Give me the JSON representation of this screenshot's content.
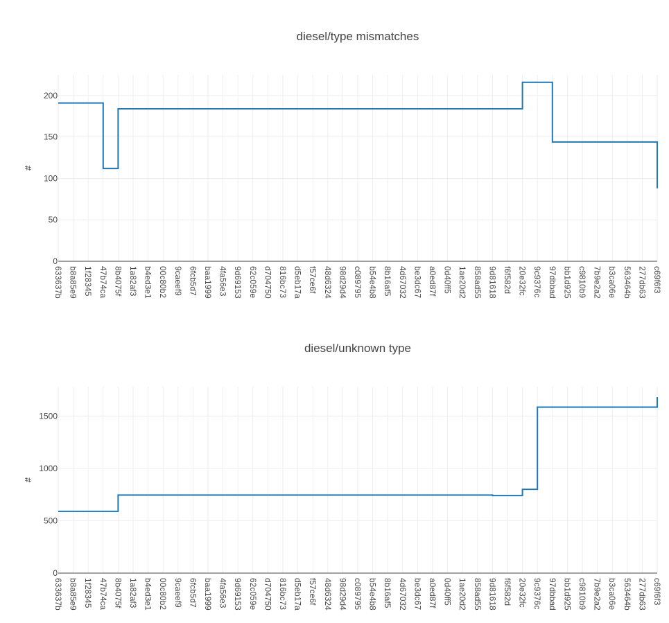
{
  "chart_data": [
    {
      "type": "line",
      "step": true,
      "title": "diesel/type mismatches",
      "ylabel": "#",
      "xlabel": "",
      "ylim": [
        0,
        225
      ],
      "yticks": [
        0,
        50,
        100,
        150,
        200
      ],
      "grid": true,
      "color": "#1f77b4",
      "categories": [
        "633637b",
        "b8a85e9",
        "1f28345",
        "47b74ca",
        "8b4075f",
        "1a82af3",
        "b4ed3e1",
        "00c80b2",
        "9caeef9",
        "6fcb5d7",
        "baa1999",
        "4fa56e3",
        "9d69153",
        "62c059e",
        "d704750",
        "816bc73",
        "d5eb17a",
        "f57ce6f",
        "48d6324",
        "98d29d4",
        "c089795",
        "b54e4b8",
        "8b16af5",
        "4d67032",
        "be3dc67",
        "a0ed87f",
        "0d40ff5",
        "1ae20d2",
        "858ad55",
        "9d81618",
        "f6f582d",
        "20e32fc",
        "9c9376c",
        "97dbbad",
        "bb1d925",
        "c9810b9",
        "7b9e2a2",
        "b3ca06e",
        "563464b",
        "277db63",
        "c69f6f3"
      ],
      "values": [
        191,
        191,
        191,
        112,
        184,
        184,
        184,
        184,
        184,
        184,
        184,
        184,
        184,
        184,
        184,
        184,
        184,
        184,
        184,
        184,
        184,
        184,
        184,
        184,
        184,
        184,
        184,
        184,
        184,
        184,
        184,
        216,
        216,
        144,
        144,
        144,
        144,
        144,
        144,
        144,
        88
      ]
    },
    {
      "type": "line",
      "step": true,
      "title": "diesel/unknown type",
      "ylabel": "#",
      "xlabel": "",
      "ylim": [
        0,
        1780
      ],
      "yticks": [
        0,
        500,
        1000,
        1500
      ],
      "grid": true,
      "color": "#1f77b4",
      "categories": [
        "633637b",
        "b8a85e9",
        "1f28345",
        "47b74ca",
        "8b4075f",
        "1a82af3",
        "b4ed3e1",
        "00c80b2",
        "9caeef9",
        "6fcb5d7",
        "baa1999",
        "4fa56e3",
        "9d69153",
        "62c059e",
        "d704750",
        "816bc73",
        "d5eb17a",
        "f57ce6f",
        "48d6324",
        "98d29d4",
        "c089795",
        "b54e4b8",
        "8b16af5",
        "4d67032",
        "be3dc67",
        "a0ed87f",
        "0d40ff5",
        "1ae20d2",
        "858ad55",
        "9d81618",
        "f6f582d",
        "20e32fc",
        "9c9376c",
        "97dbbad",
        "bb1d925",
        "c9810b9",
        "7b9e2a2",
        "b3ca06e",
        "563464b",
        "277db63",
        "c69f6f3"
      ],
      "values": [
        590,
        590,
        590,
        590,
        745,
        745,
        745,
        745,
        745,
        745,
        745,
        745,
        745,
        745,
        745,
        745,
        745,
        745,
        745,
        745,
        745,
        745,
        745,
        745,
        745,
        745,
        745,
        745,
        745,
        740,
        740,
        800,
        1585,
        1585,
        1585,
        1585,
        1585,
        1585,
        1585,
        1585,
        1680
      ]
    }
  ]
}
